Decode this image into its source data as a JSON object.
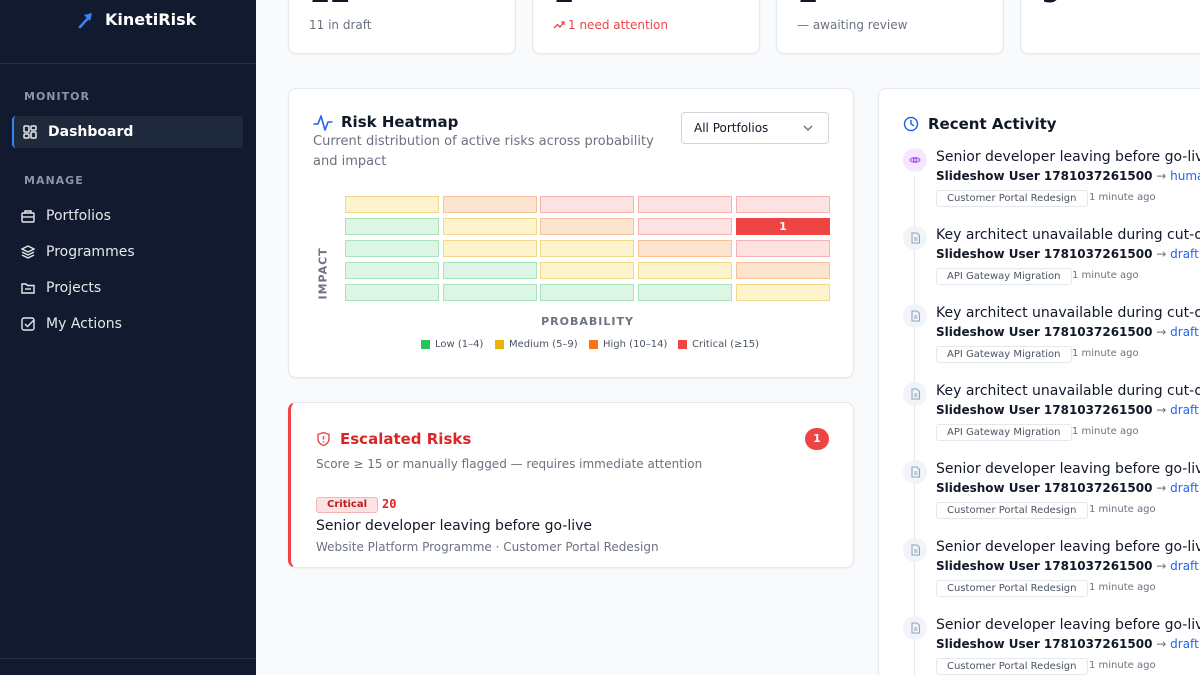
{
  "app": {
    "name": "KinetiRisk"
  },
  "sidebar": {
    "monitor_label": "MONITOR",
    "manage_label": "MANAGE",
    "items": [
      {
        "label": "Dashboard",
        "icon": "dashboard-grid-icon",
        "active": true
      },
      {
        "label": "Portfolios",
        "icon": "building-icon"
      },
      {
        "label": "Programmes",
        "icon": "layers-icon"
      },
      {
        "label": "Projects",
        "icon": "folder-icon"
      },
      {
        "label": "My Actions",
        "icon": "checkbox-icon"
      }
    ]
  },
  "stats": [
    {
      "sub": "11 in draft"
    },
    {
      "sub": "1 need attention",
      "trend_icon": "trending-up-icon"
    },
    {
      "sub": "— awaiting review"
    },
    {
      "sub": ""
    }
  ],
  "heatmap": {
    "title": "Risk Heatmap",
    "subtitle_line1": "Current distribution of active risks across probability",
    "subtitle_line2": "and impact",
    "filter_value": "All Portfolios",
    "y_label": "IMPACT",
    "x_label": "PROBABILITY",
    "critical_count": "1",
    "legend": [
      {
        "label": "Low (1–4)",
        "color": "#22c55e"
      },
      {
        "label": "Medium (5–9)",
        "color": "#eab308"
      },
      {
        "label": "High (10–14)",
        "color": "#f97316"
      },
      {
        "label": "Critical (≥15)",
        "color": "#ef4444"
      }
    ]
  },
  "escalated": {
    "title": "Escalated Risks",
    "count": "1",
    "subtitle": "Score ≥ 15 or manually flagged — requires immediate attention",
    "risk": {
      "badge": "Critical",
      "score": "20",
      "title": "Senior developer leaving before go-live",
      "context": "Website Platform Programme · Customer Portal Redesign"
    }
  },
  "activity": {
    "title": "Recent Activity",
    "items": [
      {
        "title": "Senior developer leaving before go-live",
        "user": "Slideshow User 1781037261500",
        "state": "human review",
        "project": "Customer Portal Redesign",
        "time": "1 minute ago",
        "icon": "eye-icon"
      },
      {
        "title": "Key architect unavailable during cut-over",
        "user": "Slideshow User 1781037261500",
        "state": "draft",
        "project": "API Gateway Migration",
        "time": "1 minute ago",
        "icon": "document-icon"
      },
      {
        "title": "Key architect unavailable during cut-over",
        "user": "Slideshow User 1781037261500",
        "state": "draft",
        "project": "API Gateway Migration",
        "time": "1 minute ago",
        "icon": "document-icon"
      },
      {
        "title": "Key architect unavailable during cut-over",
        "user": "Slideshow User 1781037261500",
        "state": "draft",
        "project": "API Gateway Migration",
        "time": "1 minute ago",
        "icon": "document-icon"
      },
      {
        "title": "Senior developer leaving before go-live",
        "user": "Slideshow User 1781037261500",
        "state": "draft",
        "project": "Customer Portal Redesign",
        "time": "1 minute ago",
        "icon": "document-icon"
      },
      {
        "title": "Senior developer leaving before go-live",
        "user": "Slideshow User 1781037261500",
        "state": "draft",
        "project": "Customer Portal Redesign",
        "time": "1 minute ago",
        "icon": "document-icon"
      },
      {
        "title": "Senior developer leaving before go-live",
        "user": "Slideshow User 1781037261500",
        "state": "draft",
        "project": "Customer Portal Redesign",
        "time": "1 minute ago",
        "icon": "document-icon"
      }
    ]
  }
}
